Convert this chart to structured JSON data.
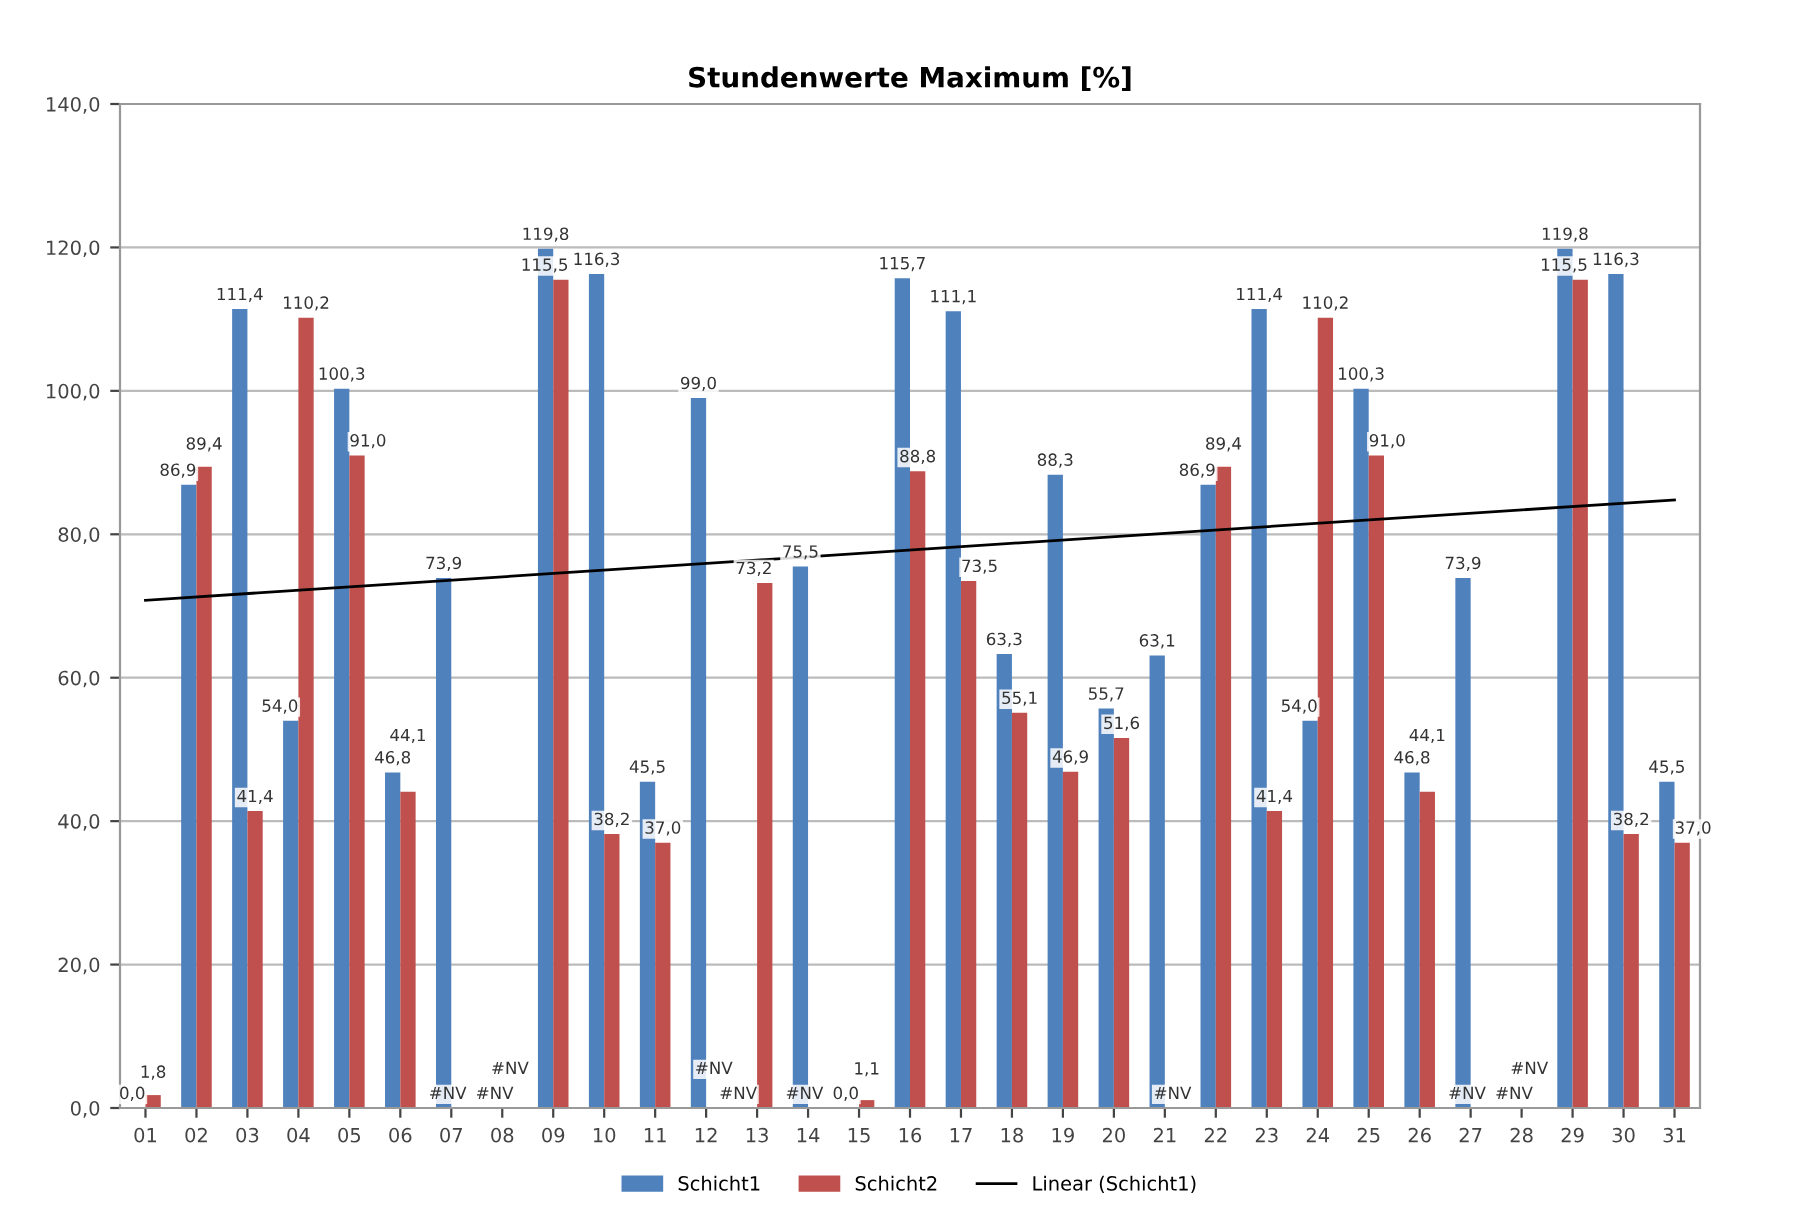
{
  "chart_data": {
    "type": "bar",
    "title": "Stundenwerte Maximum [%]",
    "categories": [
      "01",
      "02",
      "03",
      "04",
      "05",
      "06",
      "07",
      "08",
      "09",
      "10",
      "11",
      "12",
      "13",
      "14",
      "15",
      "16",
      "17",
      "18",
      "19",
      "20",
      "21",
      "22",
      "23",
      "24",
      "25",
      "26",
      "27",
      "28",
      "29",
      "30",
      "31"
    ],
    "series": [
      {
        "name": "Schicht1",
        "color": "#4f81bd",
        "values": [
          0.0,
          86.9,
          111.4,
          54.0,
          100.3,
          46.8,
          73.9,
          null,
          119.8,
          116.3,
          45.5,
          99.0,
          null,
          75.5,
          0.0,
          115.7,
          111.1,
          63.3,
          88.3,
          55.7,
          63.1,
          86.9,
          111.4,
          54.0,
          100.3,
          46.8,
          73.9,
          null,
          119.8,
          116.3,
          45.5
        ],
        "value_labels": [
          "0,0",
          "86,9",
          "111,4",
          "54,0",
          "100,3",
          "46,8",
          "73,9",
          "#NV",
          "119,8",
          "116,3",
          "45,5",
          "99,0",
          "#NV",
          "75,5",
          "0,0",
          "115,7",
          "111,1",
          "63,3",
          "88,3",
          "55,7",
          "63,1",
          "86,9",
          "111,4",
          "54,0",
          "100,3",
          "46,8",
          "73,9",
          "#NV",
          "119,8",
          "116,3",
          "45,5"
        ]
      },
      {
        "name": "Schicht2",
        "color": "#c0504d",
        "values": [
          1.8,
          89.4,
          41.4,
          110.2,
          91.0,
          44.1,
          null,
          null,
          115.5,
          38.2,
          37.0,
          null,
          73.2,
          null,
          1.1,
          88.8,
          73.5,
          55.1,
          46.9,
          51.6,
          null,
          89.4,
          41.4,
          110.2,
          91.0,
          44.1,
          null,
          null,
          115.5,
          38.2,
          37.0
        ],
        "value_labels": [
          "1,8",
          "89,4",
          "41,4",
          "110,2",
          "91,0",
          "44,1",
          "#NV",
          "#NV",
          "115,5",
          "38,2",
          "37,0",
          "#NV",
          "73,2",
          "#NV",
          "1,1",
          "88,8",
          "73,5",
          "55,1",
          "46,9",
          "51,6",
          "#NV",
          "89,4",
          "41,4",
          "110,2",
          "91,0",
          "44,1",
          "#NV",
          "#NV",
          "115,5",
          "38,2",
          "37,0"
        ]
      },
      {
        "name": "Linear (Schicht1)",
        "type": "line",
        "color": "#000000",
        "x": [
          "01",
          "31"
        ],
        "values": [
          70.8,
          84.8
        ]
      }
    ],
    "ylim": [
      0,
      140
    ],
    "yticks": [
      {
        "value": 0,
        "label": "0,0"
      },
      {
        "value": 20,
        "label": "20,0"
      },
      {
        "value": 40,
        "label": "40,0"
      },
      {
        "value": 60,
        "label": "60,0"
      },
      {
        "value": 80,
        "label": "80,0"
      },
      {
        "value": 100,
        "label": "100,0"
      },
      {
        "value": 120,
        "label": "120,0"
      },
      {
        "value": 140,
        "label": "140,0"
      }
    ],
    "grid": "y",
    "legend": "bottom"
  }
}
